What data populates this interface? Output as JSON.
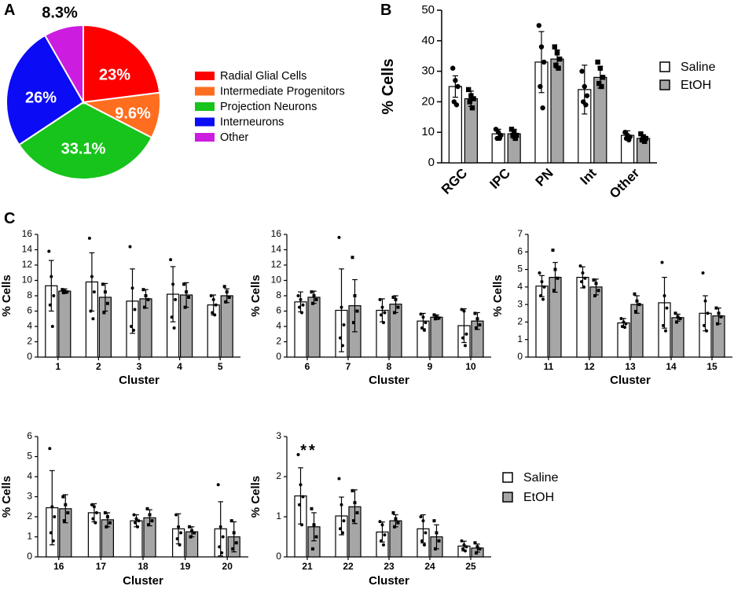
{
  "panel_labels": {
    "a": "A",
    "b": "B",
    "c": "C"
  },
  "colors": {
    "rgc": "#ff0000",
    "ipc": "#ff6d1f",
    "pn": "#17c41b",
    "int": "#0b0bf5",
    "other": "#cc1ce0",
    "saline": "#ffffff",
    "etoh": "#a6a6a6"
  },
  "chart_data": [
    {
      "id": "A",
      "type": "pie",
      "title": "",
      "slices": [
        {
          "label": "Radial Glial Cells",
          "value": 23.0,
          "text": "23%",
          "color": "#ff0000"
        },
        {
          "label": "Intermediate Progenitors",
          "value": 9.6,
          "text": "9.6%",
          "color": "#ff6d1f"
        },
        {
          "label": "Projection Neurons",
          "value": 33.1,
          "text": "33.1%",
          "color": "#17c41b"
        },
        {
          "label": "Interneurons",
          "value": 26.0,
          "text": "26%",
          "color": "#0b0bf5"
        },
        {
          "label": "Other",
          "value": 8.3,
          "text": "8.3%",
          "color": "#cc1ce0"
        }
      ]
    },
    {
      "id": "B",
      "type": "bar",
      "ylabel": "% Cells",
      "xlabel": "",
      "ylim": [
        0,
        50
      ],
      "yticks": [
        0,
        10,
        20,
        30,
        40,
        50
      ],
      "categories": [
        "RGC",
        "IPC",
        "PN",
        "Int",
        "Other"
      ],
      "legend": [
        "Saline",
        "EtOH"
      ],
      "series": [
        {
          "name": "Saline",
          "values": [
            25,
            9.5,
            33,
            24,
            9
          ],
          "err": [
            3.5,
            1.5,
            10,
            8,
            1.5
          ],
          "points": [
            [
              31,
              27,
              25,
              20,
              19
            ],
            [
              11,
              10,
              9,
              8,
              8
            ],
            [
              45,
              38,
              33,
              25,
              18
            ],
            [
              30,
              25,
              22,
              20,
              19
            ],
            [
              10,
              9,
              8.5,
              8,
              7.5
            ]
          ]
        },
        {
          "name": "EtOH",
          "values": [
            21,
            9.5,
            34,
            28,
            8
          ],
          "err": [
            2.5,
            1.5,
            3,
            3.5,
            1.2
          ],
          "points": [
            [
              24,
              22,
              21,
              20,
              18
            ],
            [
              11,
              10,
              9,
              9,
              8
            ],
            [
              38,
              36,
              34,
              32,
              31
            ],
            [
              33,
              31,
              28,
              26,
              25
            ],
            [
              9.5,
              8.5,
              8,
              7.5,
              7
            ]
          ]
        }
      ]
    },
    {
      "id": "C1",
      "type": "bar",
      "ylabel": "% Cells",
      "xlabel": "Cluster",
      "ylim": [
        0,
        16
      ],
      "yticks": [
        0,
        2,
        4,
        6,
        8,
        10,
        12,
        14,
        16
      ],
      "categories": [
        "1",
        "2",
        "3",
        "4",
        "5"
      ],
      "series": [
        {
          "name": "Saline",
          "values": [
            9.3,
            9.8,
            7.3,
            8.2,
            6.8
          ],
          "err": [
            3.3,
            3.8,
            4.2,
            3.6,
            1.3
          ],
          "points": [
            [
              13.8,
              10.5,
              8,
              6.8,
              4
            ],
            [
              15.5,
              10.5,
              8.5,
              6,
              5
            ],
            [
              14.4,
              9,
              6.2,
              4,
              3.5
            ],
            [
              12.7,
              9.5,
              7.5,
              5.2,
              3.8
            ],
            [
              8,
              7.5,
              6.8,
              5.8,
              5.5
            ]
          ]
        },
        {
          "name": "EtOH",
          "values": [
            8.6,
            7.8,
            7.6,
            8.1,
            8.0
          ],
          "err": [
            0.3,
            1.8,
            1.2,
            1.6,
            0.9
          ],
          "points": [
            [
              8.8,
              8.6,
              8.5,
              8.4
            ],
            [
              9.5,
              8.5,
              7,
              5.8
            ],
            [
              8.8,
              8,
              7.5,
              6.5
            ],
            [
              9.5,
              8.5,
              7.8,
              6.5
            ],
            [
              9.2,
              8.5,
              7.8,
              7.2
            ]
          ]
        }
      ]
    },
    {
      "id": "C2",
      "type": "bar",
      "ylabel": "% Cells",
      "xlabel": "Cluster",
      "ylim": [
        0,
        16
      ],
      "yticks": [
        0,
        2,
        4,
        6,
        8,
        10,
        12,
        14,
        16
      ],
      "categories": [
        "6",
        "7",
        "8",
        "9",
        "10"
      ],
      "series": [
        {
          "name": "Saline",
          "values": [
            7.2,
            6.1,
            6.1,
            4.7,
            4.1
          ],
          "err": [
            1.3,
            5.4,
            1.5,
            1.0,
            2.2
          ],
          "points": [
            [
              8,
              7.5,
              6.8,
              6.5,
              5.8
            ],
            [
              15.6,
              6.5,
              4.2,
              2.5,
              1.5
            ],
            [
              7.5,
              6.5,
              5.8,
              5.5,
              4.5
            ],
            [
              5.6,
              5.2,
              4.5,
              3.8,
              3.5
            ],
            [
              6.2,
              6,
              3,
              2.5,
              1.5
            ]
          ]
        },
        {
          "name": "EtOH",
          "values": [
            7.8,
            6.7,
            6.9,
            5.2,
            4.7
          ],
          "err": [
            0.8,
            3.4,
            1.1,
            0.3,
            1.1
          ],
          "points": [
            [
              8.5,
              8,
              7.5,
              7
            ],
            [
              13,
              8,
              6,
              4.5
            ],
            [
              7.8,
              7.5,
              6.5,
              5.8
            ],
            [
              5.5,
              5.3,
              5.1,
              5
            ],
            [
              5.7,
              5,
              4.2,
              3.8
            ]
          ]
        }
      ]
    },
    {
      "id": "C3",
      "type": "bar",
      "ylabel": "% Cells",
      "xlabel": "Cluster",
      "ylim": [
        0,
        7
      ],
      "yticks": [
        0,
        1,
        2,
        3,
        4,
        5,
        6,
        7
      ],
      "categories": [
        "11",
        "12",
        "13",
        "14",
        "15"
      ],
      "series": [
        {
          "name": "Saline",
          "values": [
            4.05,
            4.55,
            1.95,
            3.1,
            2.5
          ],
          "err": [
            0.6,
            0.6,
            0.25,
            1.45,
            1.0
          ],
          "points": [
            [
              4.8,
              4.3,
              4.0,
              3.5,
              3.3
            ],
            [
              5.2,
              4.8,
              4.5,
              4.3,
              4.0
            ],
            [
              2.2,
              2.0,
              1.9,
              1.75,
              1.7
            ],
            [
              5.4,
              3.5,
              2.8,
              1.8,
              1.5
            ],
            [
              4.8,
              3.2,
              2.5,
              1.8,
              1.5
            ]
          ]
        },
        {
          "name": "EtOH",
          "values": [
            4.55,
            4.0,
            3.0,
            2.25,
            2.35
          ],
          "err": [
            0.85,
            0.45,
            0.5,
            0.2,
            0.45
          ],
          "points": [
            [
              6.1,
              5.0,
              4.5,
              3.8
            ],
            [
              4.4,
              4.2,
              3.8,
              3.5
            ],
            [
              3.6,
              3.2,
              3.0,
              2.6
            ],
            [
              2.5,
              2.3,
              2.2,
              2.0
            ],
            [
              2.8,
              2.5,
              2.3,
              1.9
            ]
          ]
        }
      ]
    },
    {
      "id": "C4",
      "type": "bar",
      "ylabel": "% Cells",
      "xlabel": "Cluster",
      "ylim": [
        0,
        6
      ],
      "yticks": [
        0,
        1,
        2,
        3,
        4,
        5,
        6
      ],
      "categories": [
        "16",
        "17",
        "18",
        "19",
        "20"
      ],
      "series": [
        {
          "name": "Saline",
          "values": [
            2.45,
            2.2,
            1.8,
            1.4,
            1.4
          ],
          "err": [
            1.85,
            0.45,
            0.3,
            0.75,
            1.35
          ],
          "points": [
            [
              5.4,
              2.5,
              2.0,
              1.2,
              0.8
            ],
            [
              2.6,
              2.5,
              2.2,
              1.9,
              1.7
            ],
            [
              2.1,
              1.9,
              1.8,
              1.7,
              1.5
            ],
            [
              2.1,
              1.5,
              1.2,
              0.9,
              0.6
            ],
            [
              3.6,
              1.5,
              1.0,
              0.5,
              0.2
            ]
          ]
        },
        {
          "name": "EtOH",
          "values": [
            2.4,
            1.85,
            1.95,
            1.25,
            1.0
          ],
          "err": [
            0.7,
            0.35,
            0.4,
            0.25,
            0.75
          ],
          "points": [
            [
              3.0,
              2.6,
              2.2,
              1.8
            ],
            [
              2.2,
              2.0,
              1.7,
              1.5
            ],
            [
              2.4,
              2.1,
              1.8,
              1.6
            ],
            [
              1.5,
              1.3,
              1.2,
              1.0
            ],
            [
              1.8,
              1.2,
              0.7,
              0.4
            ]
          ]
        }
      ]
    },
    {
      "id": "C5",
      "type": "bar",
      "ylabel": "% Cells",
      "xlabel": "Cluster",
      "ylim": [
        0,
        3
      ],
      "yticks": [
        0,
        1,
        2,
        3
      ],
      "categories": [
        "21",
        "22",
        "23",
        "24",
        "25"
      ],
      "annotation": "**",
      "legend": [
        "Saline",
        "EtOH"
      ],
      "series": [
        {
          "name": "Saline",
          "values": [
            1.52,
            1.02,
            0.62,
            0.7,
            0.27
          ],
          "err": [
            0.7,
            0.47,
            0.25,
            0.35,
            0.12
          ],
          "points": [
            [
              2.55,
              1.8,
              1.5,
              1.3,
              0.8
            ],
            [
              1.95,
              1.3,
              0.9,
              0.7,
              0.6
            ],
            [
              0.88,
              0.8,
              0.55,
              0.4,
              0.3
            ],
            [
              1.0,
              0.9,
              0.6,
              0.4,
              0.3
            ],
            [
              0.4,
              0.3,
              0.25,
              0.2,
              0.15
            ]
          ]
        },
        {
          "name": "EtOH",
          "values": [
            0.75,
            1.25,
            0.9,
            0.5,
            0.22
          ],
          "err": [
            0.35,
            0.42,
            0.15,
            0.3,
            0.1
          ],
          "points": [
            [
              1.2,
              0.8,
              0.5,
              0.2
            ],
            [
              1.65,
              1.35,
              1.1,
              0.9
            ],
            [
              1.1,
              0.95,
              0.85,
              0.75
            ],
            [
              0.9,
              0.6,
              0.4,
              0.2
            ],
            [
              0.35,
              0.25,
              0.2,
              0.1
            ]
          ]
        }
      ]
    }
  ]
}
